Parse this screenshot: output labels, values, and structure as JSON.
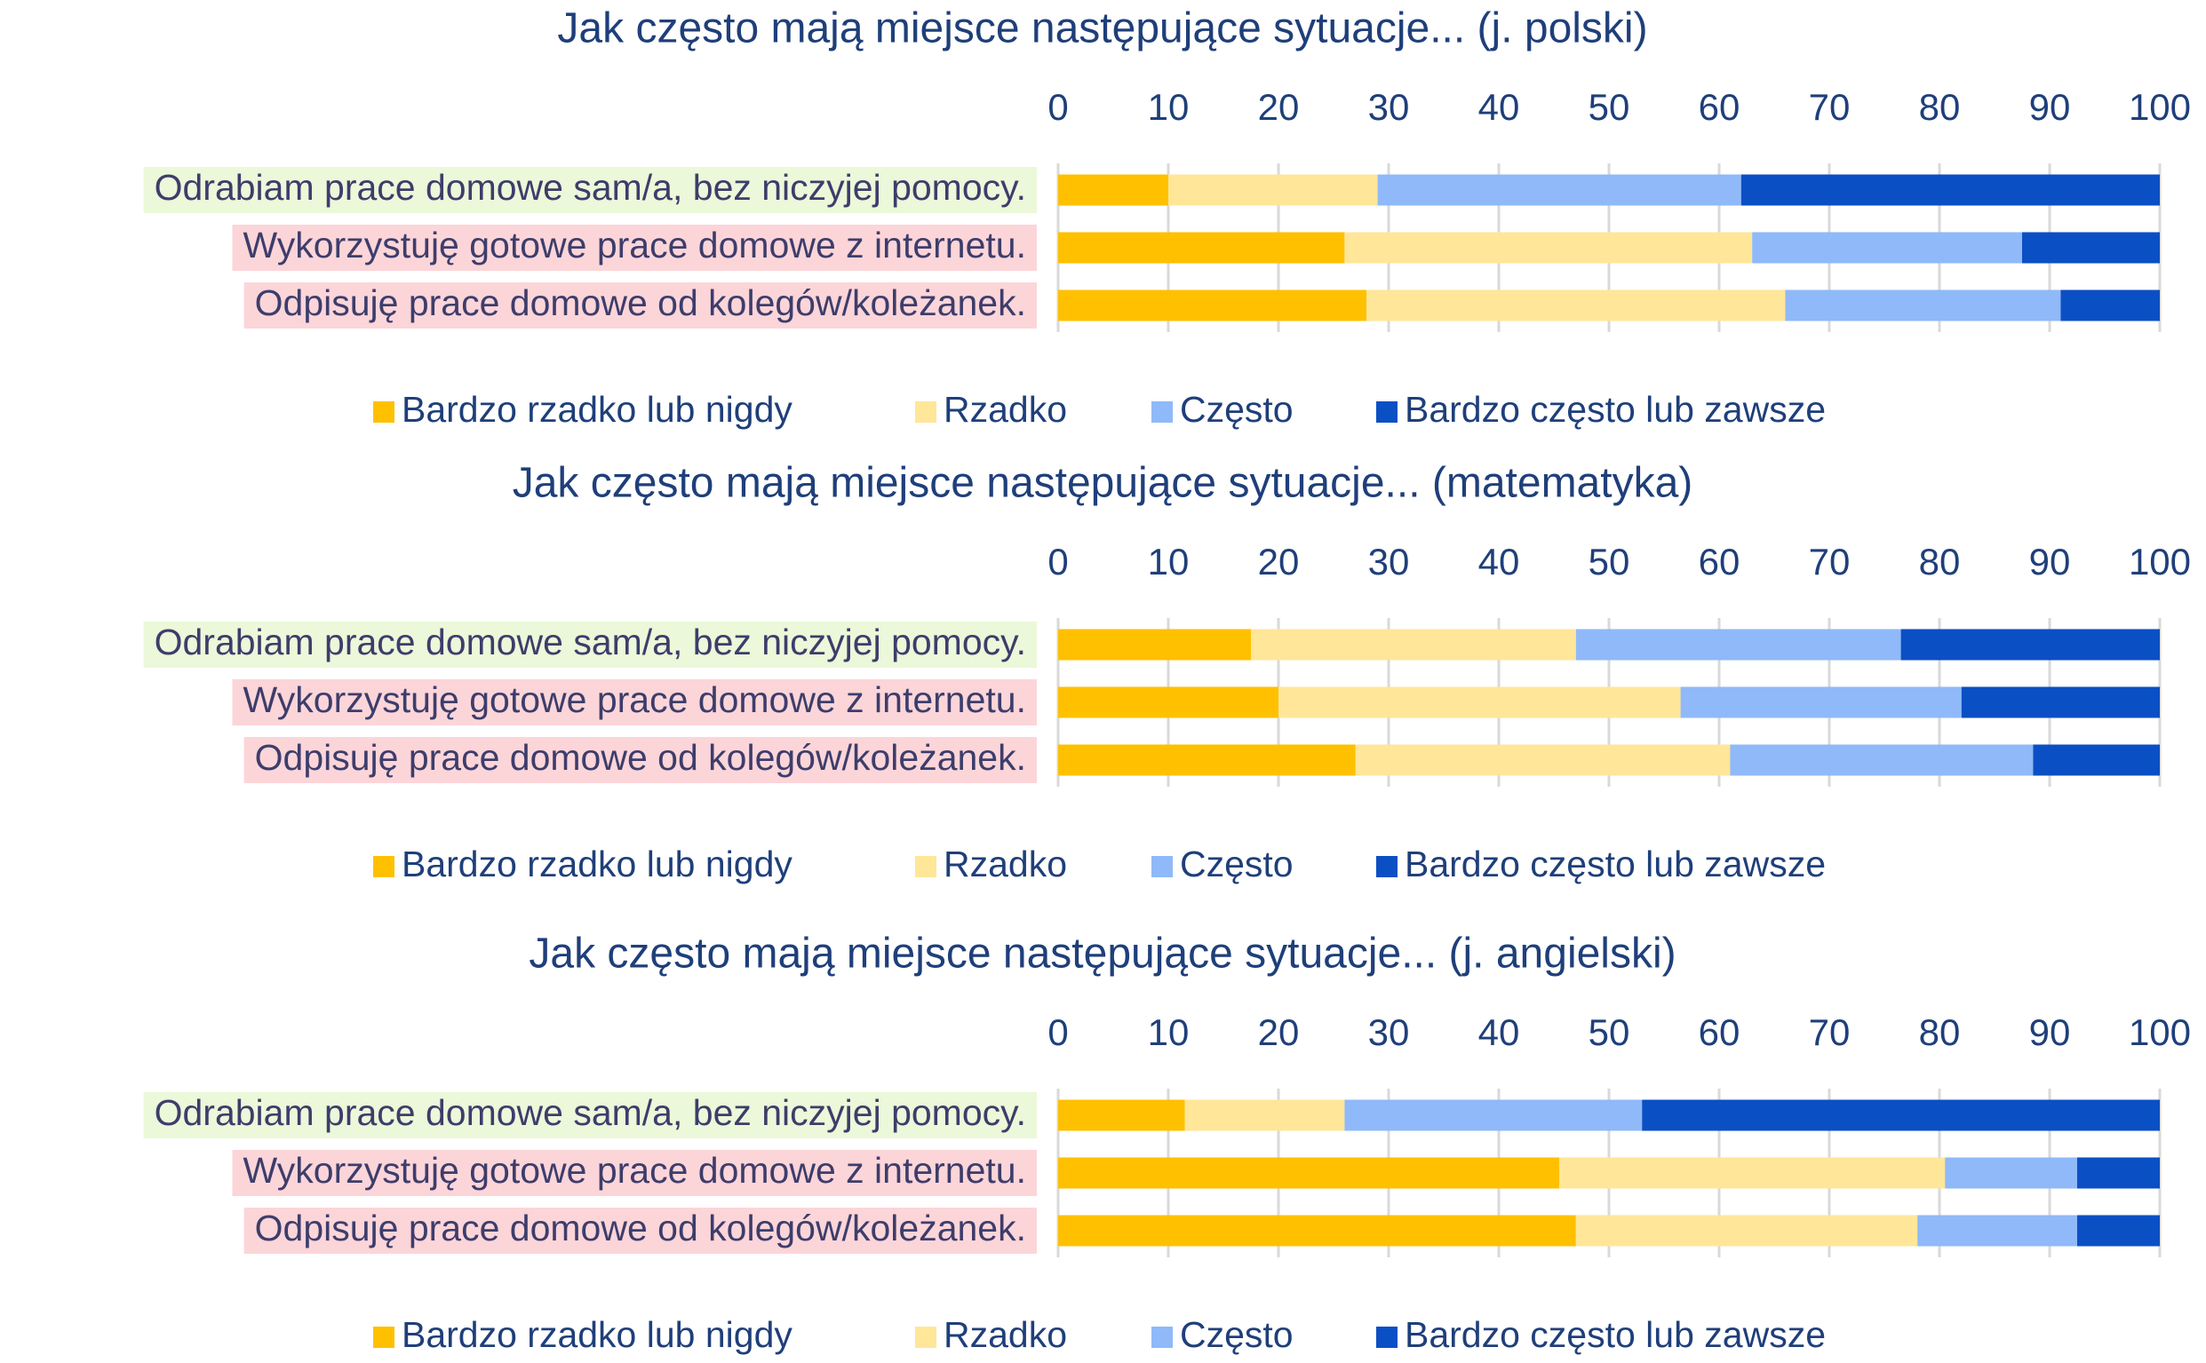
{
  "chart_data": [
    {
      "type": "bar",
      "orientation": "horizontal",
      "stacked": true,
      "title": "Jak często mają miejsce następujące sytuacje... (j. polski)",
      "categories": [
        "Odrabiam prace domowe sam/a, bez niczyjej pomocy.",
        "Wykorzystuję gotowe prace domowe z internetu.",
        "Odpisuję prace domowe od kolegów/koleżanek."
      ],
      "category_backgrounds": [
        "#ebf8d9",
        "#fcd5d9",
        "#fcd5d9"
      ],
      "series": [
        {
          "name": "Bardzo rzadko lub nigdy",
          "color": "#ffc000",
          "values": [
            10,
            26,
            28
          ]
        },
        {
          "name": "Rzadko",
          "color": "#ffe699",
          "values": [
            19,
            37,
            38
          ]
        },
        {
          "name": "Często",
          "color": "#8fb9f8",
          "values": [
            33,
            24.5,
            25
          ]
        },
        {
          "name": "Bardzo często lub zawsze",
          "color": "#0b4fc4",
          "values": [
            38,
            12.5,
            9
          ]
        }
      ],
      "xlim": [
        0,
        100
      ],
      "xticks": [
        0,
        10,
        20,
        30,
        40,
        50,
        60,
        70,
        80,
        90,
        100
      ],
      "grid": true,
      "legend": "bottom"
    },
    {
      "type": "bar",
      "orientation": "horizontal",
      "stacked": true,
      "title": "Jak często mają miejsce następujące sytuacje... (matematyka)",
      "categories": [
        "Odrabiam prace domowe sam/a, bez niczyjej pomocy.",
        "Wykorzystuję gotowe prace domowe z internetu.",
        "Odpisuję prace domowe od kolegów/koleżanek."
      ],
      "category_backgrounds": [
        "#ebf8d9",
        "#fcd5d9",
        "#fcd5d9"
      ],
      "series": [
        {
          "name": "Bardzo rzadko lub nigdy",
          "color": "#ffc000",
          "values": [
            17.5,
            20,
            27
          ]
        },
        {
          "name": "Rzadko",
          "color": "#ffe699",
          "values": [
            29.5,
            36.5,
            34
          ]
        },
        {
          "name": "Często",
          "color": "#8fb9f8",
          "values": [
            29.5,
            25.5,
            27.5
          ]
        },
        {
          "name": "Bardzo często lub zawsze",
          "color": "#0b4fc4",
          "values": [
            23.5,
            18,
            11.5
          ]
        }
      ],
      "xlim": [
        0,
        100
      ],
      "xticks": [
        0,
        10,
        20,
        30,
        40,
        50,
        60,
        70,
        80,
        90,
        100
      ],
      "grid": true,
      "legend": "bottom"
    },
    {
      "type": "bar",
      "orientation": "horizontal",
      "stacked": true,
      "title": "Jak często mają miejsce następujące sytuacje... (j. angielski)",
      "categories": [
        "Odrabiam prace domowe sam/a, bez niczyjej pomocy.",
        "Wykorzystuję gotowe prace domowe z internetu.",
        "Odpisuję prace domowe od kolegów/koleżanek."
      ],
      "category_backgrounds": [
        "#ebf8d9",
        "#fcd5d9",
        "#fcd5d9"
      ],
      "series": [
        {
          "name": "Bardzo rzadko lub nigdy",
          "color": "#ffc000",
          "values": [
            11.5,
            45.5,
            47
          ]
        },
        {
          "name": "Rzadko",
          "color": "#ffe699",
          "values": [
            14.5,
            35,
            31
          ]
        },
        {
          "name": "Często",
          "color": "#8fb9f8",
          "values": [
            27,
            12,
            14.5
          ]
        },
        {
          "name": "Bardzo często lub zawsze",
          "color": "#0b4fc4",
          "values": [
            47,
            7.5,
            7.5
          ]
        }
      ],
      "xlim": [
        0,
        100
      ],
      "xticks": [
        0,
        10,
        20,
        30,
        40,
        50,
        60,
        70,
        80,
        90,
        100
      ],
      "grid": true,
      "legend": "bottom"
    }
  ]
}
